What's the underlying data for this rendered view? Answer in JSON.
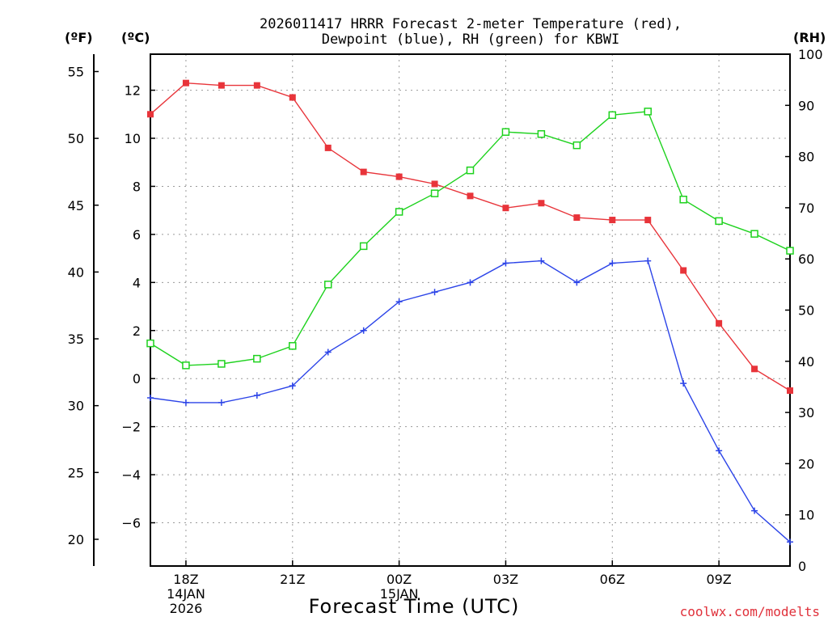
{
  "chart_data": {
    "type": "line",
    "title_lines": [
      "2026011417 HRRR Forecast 2-meter Temperature (red),",
      "Dewpoint (blue), RH (green) for KBWI"
    ],
    "xlabel": "Forecast Time (UTC)",
    "credit": "coolwx.com/modelts",
    "units": {
      "fahrenheit": "(ºF)",
      "celsius": "(ºC)",
      "rh": "(RH)"
    },
    "x_range": [
      0,
      18
    ],
    "x_ticks": [
      {
        "x": 1,
        "lines": [
          "18Z",
          "14JAN",
          "2026"
        ]
      },
      {
        "x": 4,
        "lines": [
          "21Z"
        ]
      },
      {
        "x": 7,
        "lines": [
          "00Z",
          "15JAN"
        ]
      },
      {
        "x": 10,
        "lines": [
          "03Z"
        ]
      },
      {
        "x": 13,
        "lines": [
          "06Z"
        ]
      },
      {
        "x": 16,
        "lines": [
          "09Z"
        ]
      }
    ],
    "celsius_axis": {
      "range": [
        -7.8,
        13.5
      ],
      "ticks": [
        12,
        10,
        8,
        6,
        4,
        2,
        0,
        -2,
        -4,
        -6
      ]
    },
    "fahrenheit_axis": {
      "range": [
        18,
        56.3
      ],
      "ticks": [
        55,
        50,
        45,
        40,
        35,
        30,
        25,
        20
      ]
    },
    "rh_axis": {
      "range": [
        0,
        100
      ],
      "ticks": [
        100,
        90,
        80,
        70,
        60,
        50,
        40,
        30,
        20,
        10,
        0
      ]
    },
    "grid": true,
    "series": [
      {
        "name": "Temperature",
        "axis": "celsius",
        "color": "#e8343a",
        "marker": "filled-square",
        "x": [
          0,
          1,
          2,
          3,
          4,
          5,
          6,
          7,
          8,
          9,
          10,
          11,
          12,
          13,
          14,
          15,
          16,
          17,
          18
        ],
        "values": [
          11.0,
          12.3,
          12.2,
          12.2,
          11.7,
          9.6,
          8.6,
          8.4,
          8.1,
          7.6,
          7.1,
          7.3,
          6.7,
          6.6,
          6.6,
          4.5,
          2.3,
          0.4,
          -0.5
        ]
      },
      {
        "name": "Dewpoint",
        "axis": "celsius",
        "color": "#2c44e8",
        "marker": "plus",
        "x": [
          0,
          1,
          2,
          3,
          4,
          5,
          6,
          7,
          8,
          9,
          10,
          11,
          12,
          13,
          14,
          15,
          16,
          17,
          18
        ],
        "values": [
          -0.8,
          -1.0,
          -1.0,
          -0.7,
          -0.3,
          1.1,
          2.0,
          3.2,
          3.6,
          4.0,
          4.8,
          4.9,
          4.0,
          4.8,
          4.9,
          -0.2,
          -3.0,
          -5.5,
          -6.8
        ]
      },
      {
        "name": "RH",
        "axis": "rh",
        "color": "#1ed21e",
        "marker": "open-square",
        "x": [
          0,
          1,
          2,
          3,
          4,
          5,
          6,
          7,
          8,
          9,
          10,
          11,
          12,
          13,
          14,
          15,
          16,
          17,
          18
        ],
        "values": [
          43.5,
          39.2,
          39.5,
          40.5,
          43.0,
          55.0,
          62.5,
          69.2,
          72.8,
          77.3,
          84.8,
          84.4,
          82.2,
          88.1,
          88.8,
          71.6,
          67.4,
          64.9,
          61.6
        ]
      }
    ]
  }
}
